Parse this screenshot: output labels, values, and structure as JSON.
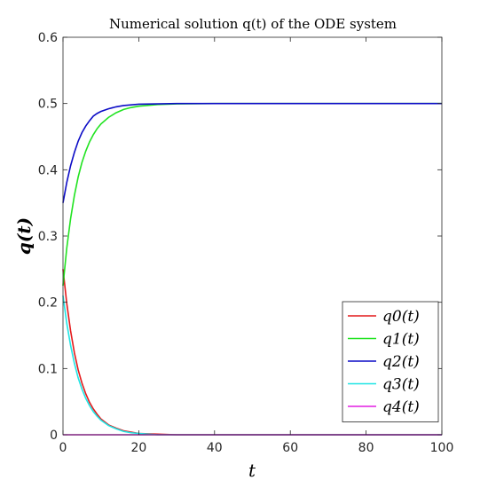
{
  "chart_data": {
    "type": "line",
    "title": "Numerical solution q(t) of the ODE system",
    "xlabel": "t",
    "ylabel": "q(t)",
    "xlim": [
      0,
      100
    ],
    "ylim": [
      0,
      0.6
    ],
    "xticks": [
      "0",
      "20",
      "40",
      "60",
      "80",
      "100"
    ],
    "yticks": [
      "0",
      "0.1",
      "0.2",
      "0.3",
      "0.4",
      "0.5",
      "0.6"
    ],
    "grid": false,
    "legend_position": "bottom-right",
    "x": [
      0,
      1,
      2,
      3,
      4,
      5,
      6,
      7,
      8,
      9,
      10,
      12,
      14,
      16,
      18,
      20,
      25,
      30,
      40,
      50,
      60,
      70,
      80,
      90,
      100
    ],
    "series": [
      {
        "name": "q0(t)",
        "color": "#e41a1c",
        "values": [
          0.25,
          0.198,
          0.157,
          0.124,
          0.098,
          0.078,
          0.062,
          0.049,
          0.039,
          0.031,
          0.024,
          0.015,
          0.01,
          0.006,
          0.004,
          0.002,
          0.001,
          0.0,
          0.0,
          0.0,
          0.0,
          0.0,
          0.0,
          0.0,
          0.0
        ]
      },
      {
        "name": "q1(t)",
        "color": "#21e321",
        "values": [
          0.225,
          0.282,
          0.326,
          0.361,
          0.389,
          0.411,
          0.428,
          0.442,
          0.453,
          0.462,
          0.469,
          0.479,
          0.486,
          0.491,
          0.494,
          0.496,
          0.4985,
          0.4995,
          0.5,
          0.5,
          0.5,
          0.5,
          0.5,
          0.5,
          0.5
        ]
      },
      {
        "name": "q2(t)",
        "color": "#0c0cc6",
        "values": [
          0.35,
          0.381,
          0.406,
          0.426,
          0.443,
          0.456,
          0.466,
          0.474,
          0.481,
          0.485,
          0.488,
          0.492,
          0.495,
          0.497,
          0.498,
          0.499,
          0.4995,
          0.5,
          0.5,
          0.5,
          0.5,
          0.5,
          0.5,
          0.5,
          0.5
        ]
      },
      {
        "name": "q3(t)",
        "color": "#1fe5e5",
        "values": [
          0.21,
          0.168,
          0.135,
          0.108,
          0.086,
          0.069,
          0.055,
          0.044,
          0.035,
          0.028,
          0.022,
          0.014,
          0.009,
          0.005,
          0.003,
          0.002,
          0.0,
          0.0,
          0.0,
          0.0,
          0.0,
          0.0,
          0.0,
          0.0,
          0.0
        ]
      },
      {
        "name": "q4(t)",
        "color": "#e21fe2",
        "values": [
          0.0,
          0.0,
          0.0,
          0.0,
          0.0,
          0.0,
          0.0,
          0.0,
          0.0,
          0.0,
          0.0,
          0.0,
          0.0,
          0.0,
          0.0,
          0.0,
          0.0,
          0.0,
          0.0,
          0.0,
          0.0,
          0.0,
          0.0,
          0.0,
          0.0
        ]
      }
    ]
  }
}
